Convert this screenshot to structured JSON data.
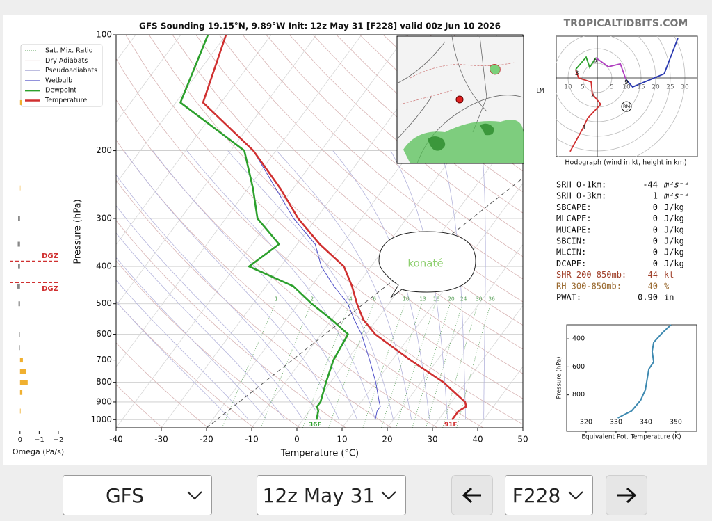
{
  "header": {
    "watermark": "TROPICALTIDBITS.COM"
  },
  "chart_data": [
    {
      "type": "skewt",
      "title": "GFS Sounding 19.15°N, 9.89°W Init: 12z May 31 [F228] valid 00z Jun 10 2026",
      "xlabel": "Temperature (°C)",
      "ylabel": "Pressure (hPa)",
      "xlim": [
        -40,
        50
      ],
      "ylim": [
        1050,
        100
      ],
      "log_y": true,
      "xticks": [
        -40,
        -30,
        -20,
        -10,
        0,
        10,
        20,
        30,
        40,
        50
      ],
      "yticks": [
        100,
        200,
        300,
        400,
        500,
        600,
        700,
        800,
        900,
        1000
      ],
      "pressure": [
        100,
        150,
        200,
        250,
        300,
        350,
        400,
        450,
        500,
        550,
        600,
        700,
        800,
        900,
        925,
        950,
        1000
      ],
      "reference_lines": [
        {
          "name": "Sat. Mix. Ratio",
          "color": "#5aa05a"
        },
        {
          "name": "Dry Adiabats",
          "color": "#d8b4b4"
        },
        {
          "name": "Pseudoadiabats",
          "color": "#b4b4dc"
        }
      ],
      "mixing_ratios": [
        1,
        2,
        4,
        6,
        10,
        13,
        16,
        20,
        24,
        30,
        36
      ],
      "series": [
        {
          "name": "Wetbulb",
          "color": "#5050c8",
          "values": [
            -80,
            -74,
            -55,
            -44,
            -35,
            -26,
            -21,
            -15,
            -9,
            -5,
            -1,
            5,
            10,
            14,
            15,
            15,
            16
          ]
        },
        {
          "name": "Dewpoint",
          "color": "#2ca02c",
          "values": [
            -84,
            -79,
            -57,
            -49,
            -43,
            -34,
            -37,
            -24,
            -17,
            -10,
            -4,
            -3,
            -1,
            1,
            1,
            2,
            3
          ],
          "surface_label": "36F"
        },
        {
          "name": "Temperature",
          "color": "#d03030",
          "values": [
            -80,
            -74,
            -55,
            -43,
            -34,
            -25,
            -16,
            -11,
            -7,
            -3,
            2,
            14,
            25,
            33,
            34,
            33,
            33
          ],
          "surface_label": "91F"
        }
      ]
    },
    {
      "type": "hodograph",
      "caption": "Hodograph (wind in kt, height in km)",
      "xticks": [
        {
          "value": -10,
          "label": "10"
        },
        {
          "value": -5,
          "label": "5"
        },
        5,
        10,
        15,
        20,
        25,
        30
      ],
      "series": [
        {
          "color": "#d03030",
          "u": [
            -9.3,
            -5,
            -3.3,
            1.2,
            -1.7,
            -2.1,
            -6.4,
            -7.4
          ],
          "v": [
            -25.2,
            -17.4,
            -13.8,
            -9,
            -5.5,
            -1.4,
            0,
            2.9
          ]
        },
        {
          "color": "#2ca02c",
          "u": [
            -7.4,
            -3.8,
            -2.6,
            -0.5
          ],
          "v": [
            2.9,
            7.1,
            3.6,
            6.9
          ]
        },
        {
          "color": "#b040c0",
          "u": [
            -0.5,
            3.8,
            7.9,
            9.8
          ],
          "v": [
            6.9,
            3.8,
            4.8,
            -0.5
          ]
        },
        {
          "color": "#2838b0",
          "u": [
            9.8,
            12.1,
            22.9,
            27.6
          ],
          "v": [
            -0.5,
            -3.1,
            1.4,
            13.6
          ]
        }
      ],
      "height_labels": [
        1,
        2,
        3,
        6,
        9
      ],
      "height_u": [
        -4.5,
        -1.5,
        -7,
        -0.7,
        10
      ],
      "height_v": [
        -17,
        -6,
        1.5,
        6,
        -1.5
      ],
      "markers": [
        {
          "label": "RM",
          "u": 10,
          "v": -9.8
        },
        {
          "label": "LM",
          "u": -19.5,
          "v": -4.5
        }
      ]
    },
    {
      "type": "line",
      "xlabel": "Equivalent Pot. Temperature (K)",
      "ylabel": "Pressure (hPa)",
      "xlim": [
        313.5,
        357
      ],
      "ylim": [
        1060,
        300
      ],
      "xticks": [
        320,
        330,
        340,
        350
      ],
      "yticks": [
        400,
        600,
        800
      ],
      "color": "#3d89b0",
      "pressure": [
        300,
        355,
        425,
        490,
        565,
        615,
        765,
        840,
        915,
        965
      ],
      "values": [
        348.4,
        345.6,
        342.6,
        342.1,
        342.6,
        341,
        339.8,
        338.2,
        335.2,
        330.6
      ]
    },
    {
      "type": "bar",
      "xlabel": "Omega (Pa/s)",
      "xlim": [
        0.5,
        -2.4
      ],
      "ylim": [
        1050,
        100
      ],
      "log_y": true,
      "xticks": [
        0,
        {
          "value": -1,
          "label": "−1"
        },
        {
          "value": -2,
          "label": "−2"
        }
      ],
      "pressure": [
        150,
        250,
        300,
        350,
        400,
        450,
        500,
        600,
        650,
        700,
        750,
        800,
        850,
        950
      ],
      "values": [
        -0.1,
        -0.02,
        0.1,
        0.12,
        0.1,
        0.15,
        0.08,
        0.02,
        0.02,
        -0.15,
        -0.3,
        -0.4,
        -0.12,
        -0.03
      ],
      "colors": {
        "positive": "#888888",
        "negative": "#f0b030"
      },
      "dgz_label": "DGZ",
      "dgz": [
        388,
        440
      ],
      "dgz_color": "#d03030"
    }
  ],
  "indices": {
    "rows": [
      {
        "label": "SRH 0-1km:",
        "value": "-44",
        "unit": "m²s⁻²"
      },
      {
        "label": "SRH 0-3km:",
        "value": "1",
        "unit": "m²s⁻²"
      },
      {
        "label": "SBCAPE:",
        "value": "0",
        "unit": "J/kg"
      },
      {
        "label": "MLCAPE:",
        "value": "0",
        "unit": "J/kg"
      },
      {
        "label": "MUCAPE:",
        "value": "0",
        "unit": "J/kg"
      },
      {
        "label": "SBCIN:",
        "value": "0",
        "unit": "J/kg"
      },
      {
        "label": "MLCIN:",
        "value": "0",
        "unit": "J/kg"
      },
      {
        "label": "DCAPE:",
        "value": "0",
        "unit": "J/kg"
      },
      {
        "label": "SHR 200-850mb:",
        "value": "44",
        "unit": "kt",
        "color": "#a0402a"
      },
      {
        "label": "RH 300-850mb:",
        "value": "40",
        "unit": "%",
        "color": "#9a6a30"
      },
      {
        "label": "PWAT:",
        "value": "0.90",
        "unit": "in"
      }
    ]
  },
  "annotation": {
    "text": "konaté"
  },
  "controls": {
    "model": "GFS",
    "init": "12z May 31",
    "forecast_hour": "F228"
  }
}
